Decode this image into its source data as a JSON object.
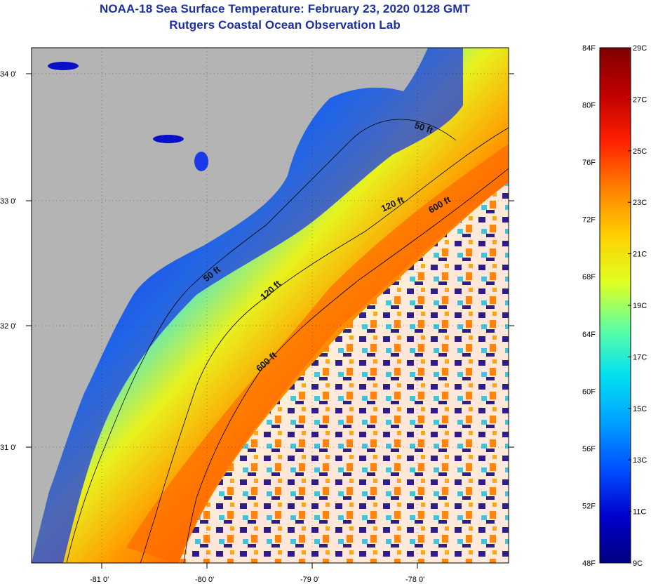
{
  "title": {
    "line1": "NOAA-18 Sea Surface Temperature:  February 23, 2020 0128 GMT",
    "line2": "Rutgers Coastal Ocean Observation Lab"
  },
  "map": {
    "lon_labels": [
      "-81 0'",
      "-80 0'",
      "-79 0'",
      "-78 0'"
    ],
    "lat_labels": [
      "34 0'",
      "33 0'",
      "32 0'",
      "31 0'"
    ],
    "contour_labels": [
      "50 ft",
      "120 ft",
      "600 ft",
      "50 ft",
      "120 ft",
      "600 ft"
    ],
    "colors": {
      "land": "#b4b4b4",
      "cloud": "#ffffff",
      "contour": "#000000",
      "grid": "#000000"
    }
  },
  "colorbar": {
    "fahrenheit_labels": [
      "84F",
      "80F",
      "76F",
      "72F",
      "68F",
      "64F",
      "60F",
      "56F",
      "52F",
      "48F"
    ],
    "celsius_labels": [
      "29C",
      "27C",
      "25C",
      "23C",
      "21C",
      "19C",
      "17C",
      "15C",
      "13C",
      "11C",
      "9C"
    ],
    "stops": [
      "#000080",
      "#0000cd",
      "#0050ff",
      "#00a0ff",
      "#00e0f0",
      "#60ffa0",
      "#e0ff20",
      "#ffd000",
      "#ff8000",
      "#ff2000",
      "#c00000",
      "#800000"
    ]
  }
}
